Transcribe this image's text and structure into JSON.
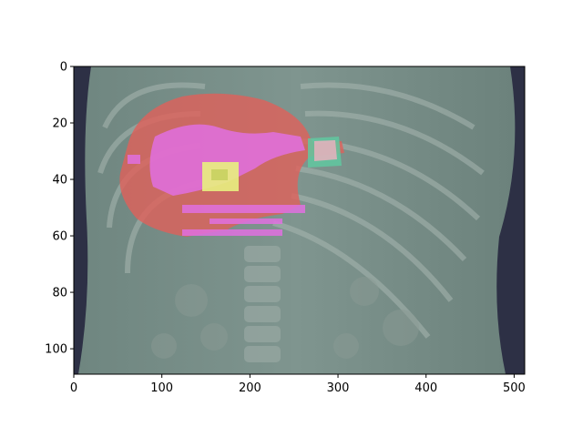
{
  "figure": {
    "image_description_icon": "ct-coronal-liver-overlay-image",
    "x_ticks": [
      "0",
      "100",
      "200",
      "300",
      "400",
      "500"
    ],
    "y_ticks": [
      "0",
      "20",
      "40",
      "60",
      "80",
      "100"
    ],
    "x_range": [
      0,
      512
    ],
    "y_range": [
      0,
      109
    ],
    "overlay_colors": {
      "liver": "#e0605a",
      "vessels": "#e070e0",
      "lesion": "#e8f080",
      "other_organ": "#60c8a0"
    }
  }
}
